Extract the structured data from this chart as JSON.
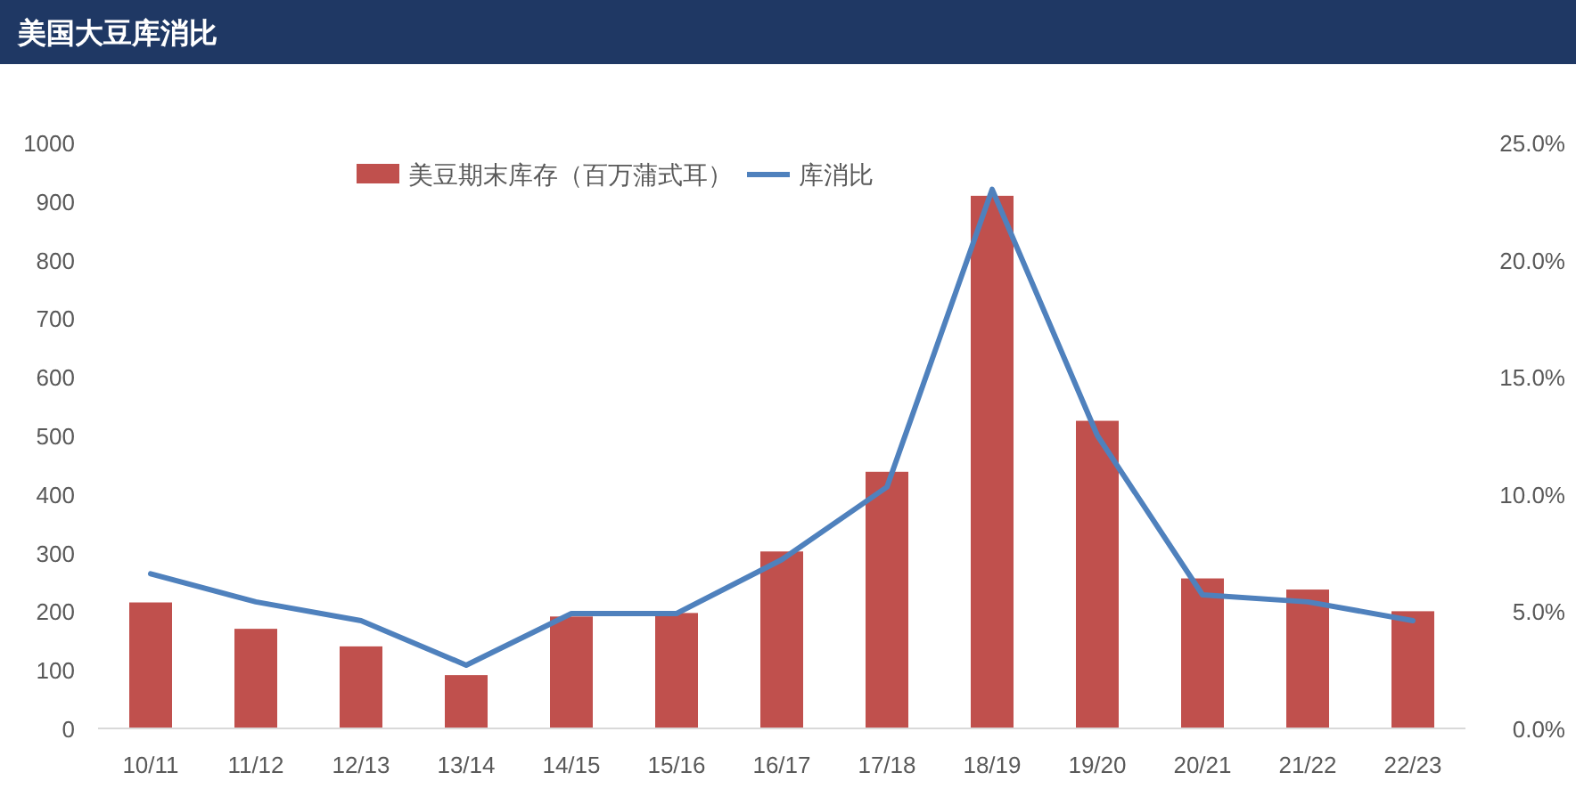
{
  "chart_data": {
    "type": "bar",
    "title": "美国大豆库消比",
    "categories": [
      "10/11",
      "11/12",
      "12/13",
      "13/14",
      "14/15",
      "15/16",
      "16/17",
      "17/18",
      "18/19",
      "19/20",
      "20/21",
      "21/22",
      "22/23"
    ],
    "series": [
      {
        "name": "美豆期末库存（百万蒲式耳）",
        "color": "#c0504d",
        "values": [
          215,
          170,
          140,
          91,
          191,
          197,
          302,
          438,
          909,
          525,
          256,
          237,
          200
        ]
      },
      {
        "name": "库消比",
        "type": "line",
        "axis": "y2",
        "color": "#4f81bd",
        "values": [
          6.6,
          5.4,
          4.6,
          2.7,
          4.9,
          4.9,
          7.2,
          10.3,
          23.0,
          12.5,
          5.7,
          5.4,
          4.6
        ]
      }
    ],
    "ylim": [
      0,
      1000
    ],
    "yticks": [
      0,
      100,
      200,
      300,
      400,
      500,
      600,
      700,
      800,
      900,
      1000
    ],
    "y2lim": [
      0,
      25
    ],
    "y2ticks": [
      {
        "value": 0,
        "label": "0.0%"
      },
      {
        "value": 5,
        "label": "5.0%"
      },
      {
        "value": 10,
        "label": "10.0%"
      },
      {
        "value": 15,
        "label": "15.0%"
      },
      {
        "value": 20,
        "label": "20.0%"
      },
      {
        "value": 25,
        "label": "25.0%"
      }
    ],
    "grid": false,
    "legend": "top",
    "marker": "none",
    "line_style": "solid"
  }
}
